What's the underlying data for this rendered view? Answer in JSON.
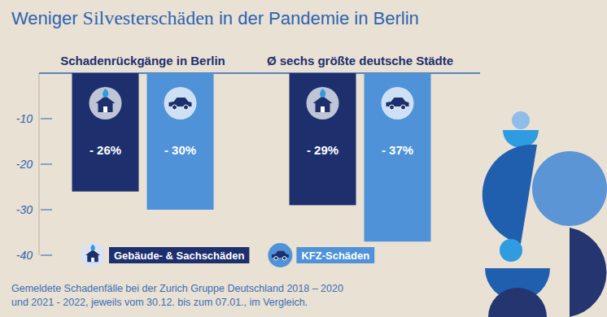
{
  "chart_data": {
    "type": "bar",
    "title": "Weniger Silvesterschäden in der Pandemie in Berlin",
    "categories": [
      "Schadenrückgänge in Berlin",
      "Ø sechs größte deutsche Städte"
    ],
    "series": [
      {
        "name": "Gebäude- & Sachschäden",
        "color": "#1e2f6e",
        "values": [
          -26,
          -29
        ],
        "value_labels": [
          "- 26%",
          "- 29%"
        ]
      },
      {
        "name": "KFZ-Schäden",
        "color": "#4f92d8",
        "values": [
          -30,
          -37
        ],
        "value_labels": [
          "- 30%",
          "- 37%"
        ]
      }
    ],
    "ylim": [
      -40,
      0
    ],
    "yticks": [
      -10,
      -20,
      -30,
      -40
    ],
    "grid": false,
    "data_labels": true,
    "legend": "bottom",
    "annotations": [
      "Gemeldete Schadenfälle bei der Zurich Gruppe Deutschland 2018 – 2020",
      "und 2021 - 2022, jeweils vom 30.12. bis zum 07.01., im Vergleich."
    ]
  }
}
